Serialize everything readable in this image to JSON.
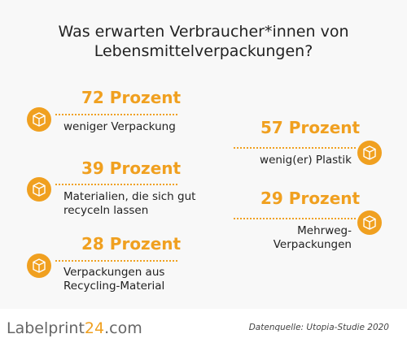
{
  "title_line1": "Was erwarten Verbraucher*innen von",
  "title_line2": "Lebensmittelverpackungen?",
  "chart_data": {
    "type": "infographic",
    "items": [
      {
        "value": 72,
        "value_label": "72 Prozent",
        "desc_line1": "weniger Verpackung",
        "desc_line2": ""
      },
      {
        "value": 39,
        "value_label": "39 Prozent",
        "desc_line1": "Materialien, die sich gut",
        "desc_line2": "recyceln lassen"
      },
      {
        "value": 28,
        "value_label": "28 Prozent",
        "desc_line1": "Verpackungen aus",
        "desc_line2": "Recycling-Material"
      },
      {
        "value": 57,
        "value_label": "57 Prozent",
        "desc_line1": "wenig(er) Plastik",
        "desc_line2": ""
      },
      {
        "value": 29,
        "value_label": "29 Prozent",
        "desc_line1": "Mehrweg-",
        "desc_line2": "Verpackungen"
      }
    ]
  },
  "footer": {
    "logo_part1": "Label",
    "logo_part2": "print",
    "logo_part3": "24",
    "logo_part4": ".com",
    "source": "Datenquelle: Utopia-Studie 2020"
  },
  "colors": {
    "accent": "#f0a020",
    "text": "#222222",
    "background": "#f8f8f8"
  },
  "icon": "package-box-icon"
}
